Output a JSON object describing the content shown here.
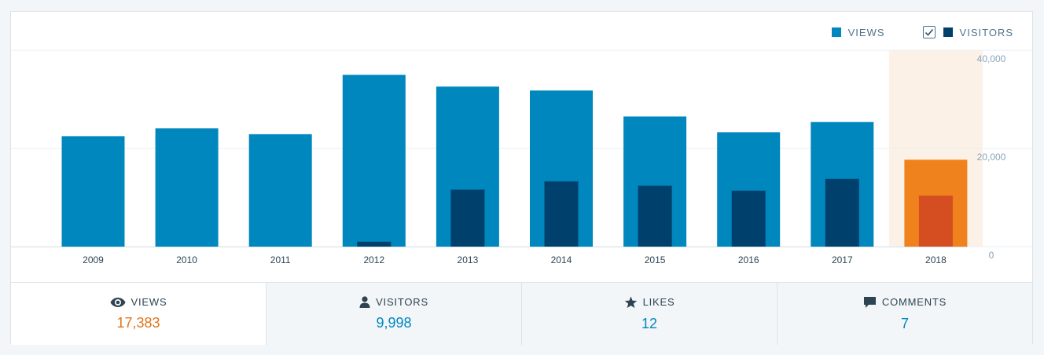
{
  "colors": {
    "views": "#0087be",
    "visitors": "#00406c",
    "views_highlight": "#f0821e",
    "visitors_highlight": "#d54e21",
    "highlight_band": "#fcf1e6",
    "accent_orange": "#e0761d",
    "text_blue": "#0087be"
  },
  "legend": {
    "views_label": "VIEWS",
    "visitors_label": "VISITORS",
    "visitors_checked": true
  },
  "chart_data": {
    "type": "bar",
    "categories": [
      "2009",
      "2010",
      "2011",
      "2012",
      "2013",
      "2014",
      "2015",
      "2016",
      "2017",
      "2018"
    ],
    "series": [
      {
        "name": "VIEWS",
        "values": [
          22500,
          24100,
          22900,
          35000,
          32600,
          31800,
          26500,
          23300,
          25400,
          17700
        ]
      },
      {
        "name": "VISITORS",
        "values": [
          0,
          0,
          0,
          1000,
          11600,
          13300,
          12400,
          11400,
          13800,
          10400
        ]
      }
    ],
    "highlighted_category": "2018",
    "yticks": [
      0,
      20000,
      40000
    ],
    "ytick_labels": [
      "0",
      "20,000",
      "40,000"
    ],
    "ylim": [
      0,
      40000
    ],
    "grid": true,
    "legend_position": "top-right"
  },
  "tabs": [
    {
      "label": "VIEWS",
      "value": "17,383",
      "icon": "eye-icon",
      "active": true
    },
    {
      "label": "VISITORS",
      "value": "9,998",
      "icon": "person-icon",
      "active": false
    },
    {
      "label": "LIKES",
      "value": "12",
      "icon": "star-icon",
      "active": false
    },
    {
      "label": "COMMENTS",
      "value": "7",
      "icon": "comment-icon",
      "active": false
    }
  ]
}
